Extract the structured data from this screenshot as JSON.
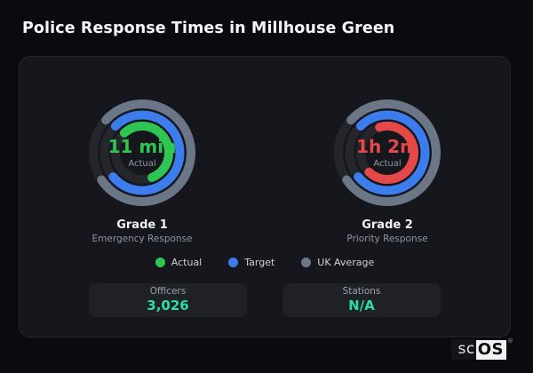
{
  "page": {
    "title": "Police Response Times in Millhouse Green"
  },
  "colors": {
    "actual_green": "#2dc653",
    "target_blue": "#3c7ded",
    "uk_average_gray": "#6b7687",
    "actual_red": "#e54848",
    "stat_teal": "#29dda3",
    "ring_track": "#24262b",
    "card_bg": "#16171c",
    "page_bg": "#0a0b0f"
  },
  "legend": [
    {
      "label": "Actual",
      "color": "#2dc653"
    },
    {
      "label": "Target",
      "color": "#3c7ded"
    },
    {
      "label": "UK Average",
      "color": "#6b7687"
    }
  ],
  "chart_data": {
    "type": "gauge",
    "title": "Police Response Times in Millhouse Green",
    "legend": [
      "Actual",
      "Target",
      "UK Average"
    ],
    "gauges": [
      {
        "label": "Grade 1",
        "sublabel": "Emergency Response",
        "center_value": "11 min",
        "center_caption": "Actual",
        "center_color": "#2dc653",
        "rings": [
          {
            "name": "UK Average",
            "color": "#6b7687",
            "radius": 55,
            "start_deg": -48,
            "sweep_deg": 284
          },
          {
            "name": "Target",
            "color": "#3c7ded",
            "radius": 42.5,
            "start_deg": -45,
            "sweep_deg": 275
          },
          {
            "name": "Actual",
            "color": "#2dc653",
            "radius": 30,
            "start_deg": -42,
            "sweep_deg": 200
          }
        ]
      },
      {
        "label": "Grade 2",
        "sublabel": "Priority Response",
        "center_value": "1h 2m",
        "center_caption": "Actual",
        "center_color": "#e54848",
        "rings": [
          {
            "name": "UK Average",
            "color": "#6b7687",
            "radius": 55,
            "start_deg": -48,
            "sweep_deg": 284
          },
          {
            "name": "Target",
            "color": "#3c7ded",
            "radius": 42.5,
            "start_deg": -45,
            "sweep_deg": 275
          },
          {
            "name": "Actual",
            "color": "#e54848",
            "radius": 30,
            "start_deg": -17,
            "sweep_deg": 240
          }
        ]
      }
    ],
    "stats": [
      {
        "label": "Officers",
        "value": "3,026",
        "color": "#29dda3"
      },
      {
        "label": "Stations",
        "value": "N/A",
        "color": "#29dda3"
      }
    ]
  },
  "brand": {
    "prefix": "sc",
    "suffix": "OS",
    "registered": "®"
  }
}
